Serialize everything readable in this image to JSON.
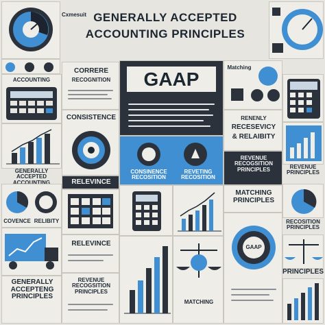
{
  "title": {
    "line1": "GENERALLY ACCEPTED",
    "line2": "ACCOUNTING PRINCIPLES"
  },
  "gaap_label": "GAAP",
  "labels": {
    "top_left_small": "Cxmesuit",
    "accounting": "ACCOUNTING",
    "correre": "CORRERE",
    "recognition": "RECOGNITION",
    "consistence": "CONSISTENCE",
    "gap_left_1": "GENERALLY ACCEPTED",
    "gap_left_2": "ACCOUNTING PRINCIPLES",
    "relevince_1": "RELEVINCE",
    "covence": "COVENCE",
    "relibity": "RELIBITY",
    "relevince_2": "RELEVINCE",
    "bottom_left_1": "GENERALLY",
    "bottom_left_2": "ACCEPTENG",
    "bottom_left_3": "PRINCIPLES",
    "revenue_small_1": "REVENUE",
    "revenue_small_2": "RECOGSITION",
    "revenue_small_3": "PRINCIPLES",
    "consinence": "CONSINENCE",
    "recosition": "RECOSITION",
    "reveting": "REVETING",
    "recosition_2": "RECOSITION",
    "matching_top": "Matching",
    "renenly": "RENENLY",
    "recesevicy": "RECESEVICY",
    "reliability": "& RELAIBITY",
    "revenue_1": "REVENUE",
    "revenue_2": "RECOGSITION",
    "revenue_3": "PRINCIPLES",
    "matching_1": "MATCHING",
    "matching_2": "PRINCIPLES",
    "matching_bottom": "MATCHING",
    "right_revenue": "REVENUE",
    "right_principles": "PRINCIPLES",
    "right_matching": "MATCHING",
    "right_principles_2": "PRINCIPLES",
    "right_principles_3": "PRINCIPLES",
    "right_recog": "RECOSITION",
    "seal_text": "GAAP"
  },
  "colors": {
    "accent": "#3f8fd2",
    "dark": "#2b323b",
    "paper": "#efede7"
  }
}
